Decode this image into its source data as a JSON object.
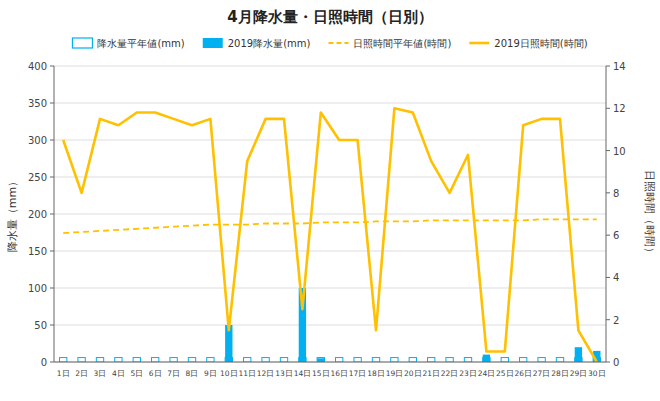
{
  "chart_data": {
    "type": "bar",
    "title": "4月降水量・日照時間（日別）",
    "categories": [
      "1日",
      "2日",
      "3日",
      "4日",
      "5日",
      "6日",
      "7日",
      "8日",
      "9日",
      "10日",
      "11日",
      "12日",
      "13日",
      "14日",
      "15日",
      "16日",
      "17日",
      "18日",
      "19日",
      "20日",
      "21日",
      "22日",
      "23日",
      "24日",
      "25日",
      "26日",
      "27日",
      "28日",
      "29日",
      "30日"
    ],
    "y_label": "降水量（mm）",
    "y2_label": "日照時間（時間）",
    "series": [
      {
        "name": "降水量平年値(mm)",
        "type": "bar",
        "color": "#00B0F0",
        "line_style": "outline",
        "values": [
          6,
          6,
          6,
          6,
          6,
          6,
          6,
          6,
          6,
          6,
          6,
          6,
          6,
          6,
          6,
          6,
          6,
          6,
          6,
          6,
          6,
          6,
          6,
          6,
          6,
          6,
          6,
          6,
          6,
          6
        ]
      },
      {
        "name": "2019降水量(mm)",
        "type": "bar",
        "color": "#00B0F0",
        "line_style": "solid",
        "values": [
          0,
          0,
          0,
          0,
          0,
          0,
          0,
          0,
          0,
          50,
          0,
          0,
          0,
          100,
          5,
          0,
          0,
          0,
          0,
          0,
          0,
          0,
          0,
          10,
          0,
          0,
          0,
          0,
          20,
          15
        ]
      },
      {
        "name": "日照時間平年値(時間)",
        "type": "line",
        "axis": "y2",
        "color": "#FFC000",
        "line_style": "dashed",
        "values": [
          6.1,
          6.15,
          6.2,
          6.25,
          6.3,
          6.35,
          6.4,
          6.45,
          6.5,
          6.5,
          6.5,
          6.55,
          6.55,
          6.55,
          6.6,
          6.6,
          6.6,
          6.65,
          6.65,
          6.65,
          6.7,
          6.7,
          6.7,
          6.7,
          6.7,
          6.7,
          6.75,
          6.75,
          6.75,
          6.75
        ]
      },
      {
        "name": "2019日照時間(時間)",
        "type": "line",
        "axis": "y2",
        "color": "#FFC000",
        "line_style": "solid",
        "values": [
          10.5,
          8.0,
          11.5,
          11.2,
          11.8,
          11.8,
          11.5,
          11.2,
          11.5,
          1.5,
          9.5,
          11.5,
          11.5,
          2.5,
          11.8,
          10.5,
          10.5,
          1.5,
          12.0,
          11.8,
          9.5,
          8.0,
          9.8,
          0.5,
          0.5,
          11.2,
          11.5,
          11.5,
          1.5,
          0.0
        ]
      }
    ],
    "ylim": [
      0,
      400
    ],
    "yticks": [
      0,
      50,
      100,
      150,
      200,
      250,
      300,
      350,
      400
    ],
    "y2lim": [
      0,
      14
    ],
    "y2ticks": [
      0,
      2,
      4,
      6,
      8,
      10,
      12,
      14
    ],
    "grid": true,
    "legend": "top"
  }
}
